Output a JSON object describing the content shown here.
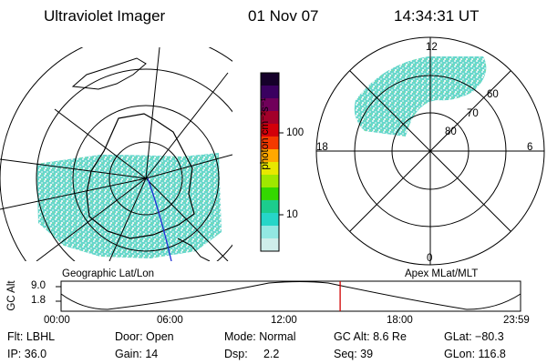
{
  "header": {
    "instrument": "Ultraviolet Imager",
    "date": "01 Nov 07",
    "time": "14:34:31 UT"
  },
  "colorbar": {
    "unit_label": "photon cm⁻²s⁻¹",
    "ticks": [
      "100",
      "10"
    ],
    "colors_top_to_bottom": [
      "#15002a",
      "#3a0060",
      "#70005a",
      "#a3002a",
      "#d3000a",
      "#f53a00",
      "#ffa800",
      "#e8e800",
      "#9fe800",
      "#34d800",
      "#1ccd8d",
      "#26d6c8",
      "#92e8e2",
      "#cfeeea"
    ]
  },
  "left_map": {
    "caption": "Geographic Lat/Lon",
    "aurora_color": "#3fc9c0"
  },
  "right_map": {
    "caption": "Apex MLat/MLT",
    "mlt_labels": {
      "top": "12",
      "left": "18",
      "right": "6",
      "bottom": "0"
    },
    "lat_labels": [
      "60",
      "70",
      "80"
    ],
    "aurora_color": "#3fc9c0"
  },
  "timeline": {
    "ylabel": "GC Alt",
    "y_ticks": [
      "9.0",
      "1.8"
    ],
    "x_ticks": [
      "00:00",
      "06:00",
      "12:00",
      "18:00",
      "23:59"
    ],
    "current_time_hours": 14.575,
    "marker_color": "#d00000"
  },
  "info": {
    "row1": {
      "flt": "Flt: LBHL",
      "door": "Door: Open",
      "mode": "Mode: Normal",
      "gcalt": "GC Alt: 8.6 Re",
      "glat": "GLat: −80.3"
    },
    "row2": {
      "ip": "IP: 36.0",
      "gain": "Gain: 14",
      "dsp_label": "Dsp:",
      "dsp_value": "2.2",
      "seq": "Seq: 39",
      "glon": "GLon: 116.8"
    }
  }
}
